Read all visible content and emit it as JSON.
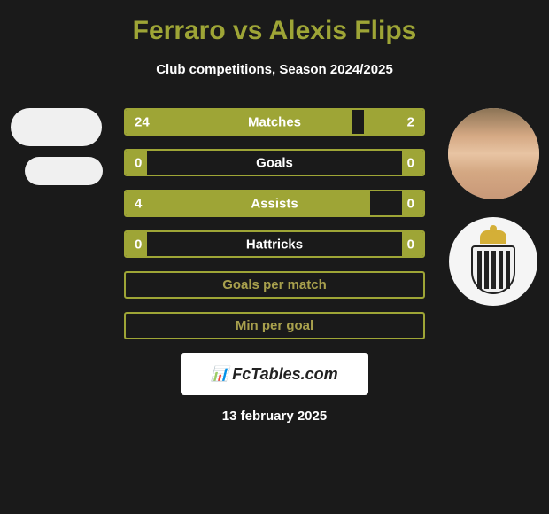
{
  "title": "Ferraro vs Alexis Flips",
  "subtitle": "Club competitions, Season 2024/2025",
  "colors": {
    "background": "#1a1a1a",
    "accent": "#9ea536",
    "text_primary": "#ffffff",
    "title_color": "#9ea536",
    "empty_label": "#a8a04d"
  },
  "player_left": {
    "name": "Ferraro"
  },
  "player_right": {
    "name": "Alexis Flips",
    "club": "R.C.S.C."
  },
  "stats": [
    {
      "label": "Matches",
      "left_value": "24",
      "right_value": "2",
      "left_pct": 76,
      "right_pct": 20,
      "type": "bar"
    },
    {
      "label": "Goals",
      "left_value": "0",
      "right_value": "0",
      "left_pct": 7,
      "right_pct": 7,
      "type": "bar"
    },
    {
      "label": "Assists",
      "left_value": "4",
      "right_value": "0",
      "left_pct": 82,
      "right_pct": 7,
      "type": "bar"
    },
    {
      "label": "Hattricks",
      "left_value": "0",
      "right_value": "0",
      "left_pct": 7,
      "right_pct": 7,
      "type": "bar"
    },
    {
      "label": "Goals per match",
      "type": "empty"
    },
    {
      "label": "Min per goal",
      "type": "empty"
    }
  ],
  "footer": {
    "brand": "FcTables.com",
    "date": "13 february 2025"
  },
  "typography": {
    "title_fontsize": 30,
    "subtitle_fontsize": 15,
    "stat_label_fontsize": 15,
    "date_fontsize": 15
  }
}
